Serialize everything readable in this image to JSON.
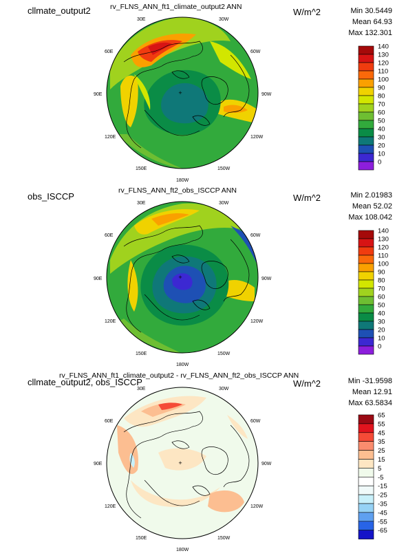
{
  "chart_data": [
    {
      "type": "heatmap",
      "case_name": "cllmate_output2",
      "title": "rv_FLNS_ANN_ft1_climate_output2  ANN",
      "units": "W/m^2",
      "stats": {
        "min": "Min 30.5449",
        "mean": "Mean 64.93",
        "max": "Max 132.301"
      },
      "lon_labels": {
        "30E": "30E",
        "30W": "30W",
        "60E": "60E",
        "60W": "60W",
        "90E": "90E",
        "90W": "90W",
        "120E": "120E",
        "120W": "120W",
        "150E": "150E",
        "150W": "150W",
        "180W": "180W"
      },
      "colorbar": {
        "labels": [
          "140",
          "130",
          "120",
          "110",
          "100",
          "90",
          "80",
          "70",
          "60",
          "50",
          "40",
          "30",
          "20",
          "10",
          "0"
        ],
        "colors": [
          "#a50a0a",
          "#d71414",
          "#f03c0f",
          "#fa690a",
          "#faa000",
          "#f0d200",
          "#d2e600",
          "#a0d21e",
          "#6ebe32",
          "#32aa3c",
          "#0a8c46",
          "#0f7878",
          "#1e50b4",
          "#3c28d2",
          "#8c1edc"
        ]
      }
    },
    {
      "type": "heatmap",
      "case_name": "obs_ISCCP",
      "title": "rv_FLNS_ANN_ft2_obs_ISCCP  ANN",
      "units": "W/m^2",
      "stats": {
        "min": "Min 2.01983",
        "mean": "Mean 52.02",
        "max": "Max 108.042"
      },
      "lon_labels": {
        "30E": "30E",
        "30W": "30W",
        "60E": "60E",
        "60W": "60W",
        "90E": "90E",
        "90W": "90W",
        "120E": "120E",
        "120W": "120W",
        "150E": "150E",
        "150W": "150W",
        "180W": "180W"
      },
      "colorbar": {
        "labels": [
          "140",
          "130",
          "120",
          "110",
          "100",
          "90",
          "80",
          "70",
          "60",
          "50",
          "40",
          "30",
          "20",
          "10",
          "0"
        ],
        "colors": [
          "#a50a0a",
          "#d71414",
          "#f03c0f",
          "#fa690a",
          "#faa000",
          "#f0d200",
          "#d2e600",
          "#a0d21e",
          "#6ebe32",
          "#32aa3c",
          "#0a8c46",
          "#0f7878",
          "#1e50b4",
          "#3c28d2",
          "#8c1edc"
        ]
      }
    },
    {
      "type": "heatmap",
      "case_name": "cllmate_output2, obs_ISCCP",
      "title": "rv_FLNS_ANN_ft1_climate_output2 - rv_FLNS_ANN_ft2_obs_ISCCP  ANN",
      "units": "W/m^2",
      "stats": {
        "min": "Min -31.9598",
        "mean": "Mean 12.91",
        "max": "Max 63.5834"
      },
      "lon_labels": {
        "30E": "30E",
        "30W": "30W",
        "60E": "60E",
        "60W": "60W",
        "90E": "90E",
        "90W": "90W",
        "120E": "120E",
        "120W": "120W",
        "150E": "150E",
        "150W": "150W",
        "180W": "180W"
      },
      "colorbar": {
        "labels": [
          "65",
          "55",
          "45",
          "35",
          "25",
          "15",
          "5",
          "-5",
          "-15",
          "-25",
          "-35",
          "-45",
          "-55",
          "-65"
        ],
        "colors": [
          "#9b0a14",
          "#e1141e",
          "#f54b37",
          "#fa8c6e",
          "#fcbe91",
          "#fde6c3",
          "#f0faeb",
          "#ffffff",
          "#f0fafa",
          "#c8f0fa",
          "#96d2f5",
          "#5fa0f0",
          "#2864e6",
          "#1414c8"
        ]
      }
    }
  ]
}
